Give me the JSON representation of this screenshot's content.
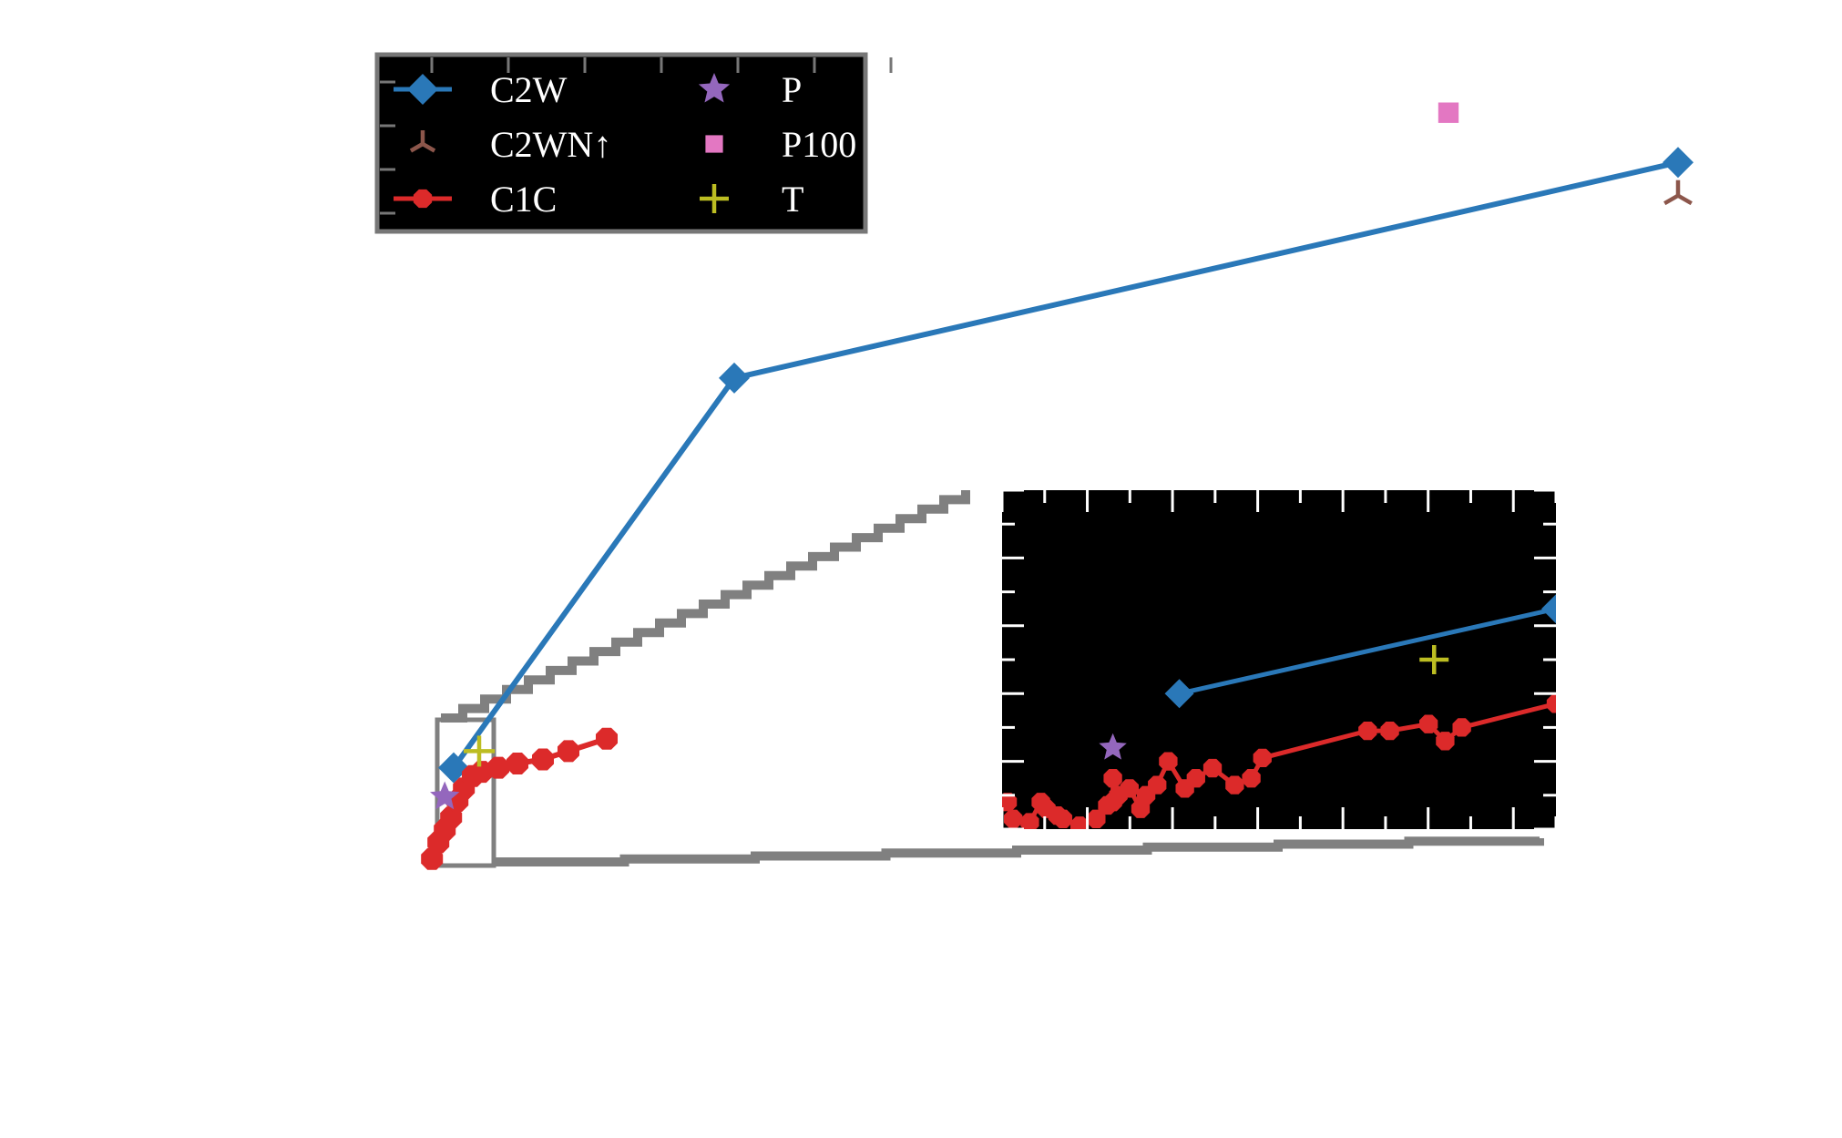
{
  "colors": {
    "C2W": "#2a78b8",
    "C2WN": "#8c564b",
    "C1C": "#dc2a2a",
    "P": "#9467bd",
    "P100": "#e377c2",
    "T": "#bcbd22",
    "zoom": "#808080",
    "background": "#ffffff",
    "legend_bg": "#000000",
    "inset_bg": "#000000"
  },
  "legend": {
    "items": [
      {
        "label": "C2W",
        "marker": "diamond",
        "series": "C2W"
      },
      {
        "label": "C2WN↑",
        "marker": "tri-down",
        "series": "C2WN"
      },
      {
        "label": "C1C",
        "marker": "octagon",
        "series": "C1C"
      },
      {
        "label": "P",
        "marker": "star",
        "series": "P"
      },
      {
        "label": "P100",
        "marker": "square",
        "series": "P100"
      },
      {
        "label": "T",
        "marker": "plus",
        "series": "T"
      }
    ],
    "placement": "top-left"
  },
  "chart_data": [
    {
      "type": "line",
      "panel": "main",
      "title": "",
      "xlabel": "",
      "ylabel": "",
      "xlim": [
        0,
        100
      ],
      "ylim": [
        0,
        100
      ],
      "grid": false,
      "axes_visible": false,
      "series": [
        {
          "name": "C2W",
          "marker": "diamond",
          "line": true,
          "points": [
            [
              2,
              14
            ],
            [
              24,
              61
            ],
            [
              98,
              87
            ]
          ]
        },
        {
          "name": "C2WN↑",
          "marker": "tri-down",
          "line": false,
          "points": [
            [
              98,
              83
            ]
          ]
        },
        {
          "name": "C1C",
          "marker": "octagon",
          "line": true,
          "points": [
            [
              0.3,
              3
            ],
            [
              0.8,
              5
            ],
            [
              1.3,
              6.5
            ],
            [
              1.8,
              8
            ],
            [
              2.3,
              10
            ],
            [
              2.8,
              11.5
            ],
            [
              3.5,
              13
            ],
            [
              4.2,
              13.5
            ],
            [
              5.5,
              14
            ],
            [
              7,
              14.5
            ],
            [
              9,
              15
            ],
            [
              11,
              16
            ],
            [
              14,
              17.5
            ]
          ]
        },
        {
          "name": "P",
          "marker": "star",
          "line": false,
          "points": [
            [
              1.3,
              10.5
            ]
          ]
        },
        {
          "name": "P100",
          "marker": "square",
          "line": false,
          "points": [
            [
              80,
              93
            ]
          ]
        },
        {
          "name": "T",
          "marker": "plus",
          "line": false,
          "points": [
            [
              4,
              16
            ]
          ]
        }
      ]
    },
    {
      "type": "line",
      "panel": "inset",
      "title": "",
      "xlabel": "",
      "ylabel": "",
      "xlim": [
        0,
        10
      ],
      "ylim": [
        0,
        10
      ],
      "grid": false,
      "series": [
        {
          "name": "C2W",
          "marker": "diamond",
          "line": true,
          "points": [
            [
              3.2,
              4.0
            ],
            [
              10,
              6.5
            ]
          ]
        },
        {
          "name": "C1C",
          "marker": "octagon",
          "line": true,
          "points": [
            [
              0.1,
              0.8
            ],
            [
              0.2,
              0.3
            ],
            [
              0.5,
              0.2
            ],
            [
              0.7,
              0.8
            ],
            [
              0.8,
              0.6
            ],
            [
              1.0,
              0.4
            ],
            [
              1.1,
              0.3
            ],
            [
              1.4,
              0.1
            ],
            [
              1.7,
              0.3
            ],
            [
              1.9,
              0.7
            ],
            [
              2.0,
              0.8
            ],
            [
              2.0,
              1.5
            ],
            [
              2.1,
              1.0
            ],
            [
              2.3,
              1.2
            ],
            [
              2.5,
              0.6
            ],
            [
              2.6,
              1.0
            ],
            [
              2.8,
              1.3
            ],
            [
              3.0,
              2.0
            ],
            [
              3.3,
              1.2
            ],
            [
              3.5,
              1.5
            ],
            [
              3.8,
              1.8
            ],
            [
              4.2,
              1.3
            ],
            [
              4.5,
              1.5
            ],
            [
              4.7,
              2.1
            ],
            [
              6.6,
              2.9
            ],
            [
              7.0,
              2.9
            ],
            [
              7.7,
              3.1
            ],
            [
              8.0,
              2.6
            ],
            [
              8.3,
              3.0
            ],
            [
              10,
              3.7
            ]
          ]
        },
        {
          "name": "P",
          "marker": "star",
          "line": false,
          "points": [
            [
              2.0,
              2.4
            ]
          ]
        },
        {
          "name": "T",
          "marker": "plus",
          "line": false,
          "points": [
            [
              7.8,
              5.0
            ]
          ]
        }
      ]
    }
  ]
}
